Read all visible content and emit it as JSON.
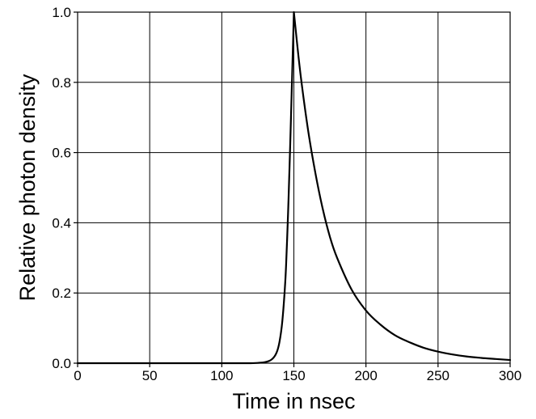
{
  "chart_data": {
    "type": "line",
    "title": "",
    "xlabel": "Time in nsec",
    "ylabel": "Relative photon density",
    "xlim": [
      0,
      300
    ],
    "ylim": [
      0.0,
      1.0
    ],
    "xticks": [
      0,
      50,
      100,
      150,
      200,
      250,
      300
    ],
    "xtick_labels": [
      "0",
      "50",
      "100",
      "150",
      "200",
      "250",
      "300"
    ],
    "yticks": [
      0.0,
      0.2,
      0.4,
      0.6,
      0.8,
      1.0
    ],
    "ytick_labels": [
      "0.0",
      "0.2",
      "0.4",
      "0.6",
      "0.8",
      "1.0"
    ],
    "grid": true,
    "legend": "none",
    "line_color": "#000000",
    "series": [
      {
        "x": [
          0,
          100,
          120,
          130,
          135,
          138,
          140,
          142,
          144,
          145,
          146,
          147,
          148,
          149,
          150,
          152,
          155,
          160,
          165,
          170,
          175,
          180,
          190,
          200,
          210,
          220,
          230,
          240,
          250,
          260,
          270,
          280,
          290,
          300
        ],
        "y": [
          0.0,
          0.0,
          0.0,
          0.003,
          0.012,
          0.03,
          0.06,
          0.12,
          0.23,
          0.32,
          0.43,
          0.56,
          0.7,
          0.85,
          1.0,
          0.92,
          0.81,
          0.66,
          0.54,
          0.44,
          0.36,
          0.3,
          0.21,
          0.15,
          0.11,
          0.08,
          0.06,
          0.044,
          0.033,
          0.025,
          0.019,
          0.015,
          0.012,
          0.009
        ]
      }
    ]
  }
}
